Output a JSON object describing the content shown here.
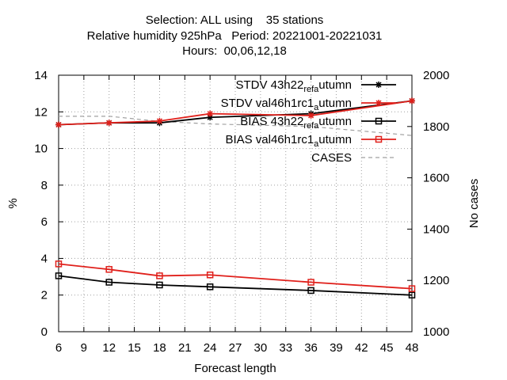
{
  "title_lines": [
    "Selection: ALL using    35 stations",
    "Relative humidity 925hPa   Period: 20221001-20221031",
    "Hours:  00,06,12,18"
  ],
  "chart_data": {
    "type": "line",
    "xlabel": "Forecast length",
    "ylabel": "%",
    "y2label": "No cases",
    "x_ticks": [
      6,
      9,
      12,
      15,
      18,
      21,
      24,
      27,
      30,
      33,
      36,
      39,
      42,
      45,
      48
    ],
    "y_ticks": [
      0,
      2,
      4,
      6,
      8,
      10,
      12,
      14
    ],
    "y2_ticks": [
      1000,
      1200,
      1400,
      1600,
      1800,
      2000
    ],
    "xlim": [
      6,
      48
    ],
    "ylim": [
      0,
      14
    ],
    "y2lim": [
      1000,
      2000
    ],
    "grid": true,
    "legend_position": "top-right",
    "x": [
      6,
      12,
      18,
      24,
      36,
      48
    ],
    "series": [
      {
        "name": "STDV 43h22_ref_autumn",
        "name_parts": [
          "STDV 43h22",
          "ref",
          "a",
          "utumn"
        ],
        "axis": "left",
        "color": "#000000",
        "marker": "star",
        "values": [
          11.3,
          11.4,
          11.4,
          11.7,
          11.9,
          12.6
        ]
      },
      {
        "name": "STDV val46h1rc1_autumn",
        "name_parts": [
          "STDV val46h1rc1",
          "",
          "a",
          "utumn"
        ],
        "axis": "left",
        "color": "#e0201b",
        "marker": "star",
        "values": [
          11.3,
          11.4,
          11.5,
          11.9,
          11.8,
          12.6
        ]
      },
      {
        "name": "BIAS 43h22_ref_autumn",
        "name_parts": [
          "BIAS 43h22",
          "ref",
          "a",
          "utumn"
        ],
        "axis": "left",
        "color": "#000000",
        "marker": "square",
        "values": [
          3.05,
          2.7,
          2.55,
          2.45,
          2.25,
          2.0
        ]
      },
      {
        "name": "BIAS val46h1rc1_autumn",
        "name_parts": [
          "BIAS val46h1rc1",
          "",
          "a",
          "utumn"
        ],
        "axis": "left",
        "color": "#e0201b",
        "marker": "square",
        "values": [
          3.7,
          3.4,
          3.05,
          3.1,
          2.7,
          2.35
        ]
      },
      {
        "name": "CASES",
        "name_parts": [
          "CASES",
          "",
          "",
          ""
        ],
        "axis": "right",
        "color": "#a0a0a0",
        "dash": "dashed",
        "marker": "none",
        "values": [
          1840,
          1840,
          1820,
          1810,
          1800,
          1765
        ]
      }
    ]
  }
}
